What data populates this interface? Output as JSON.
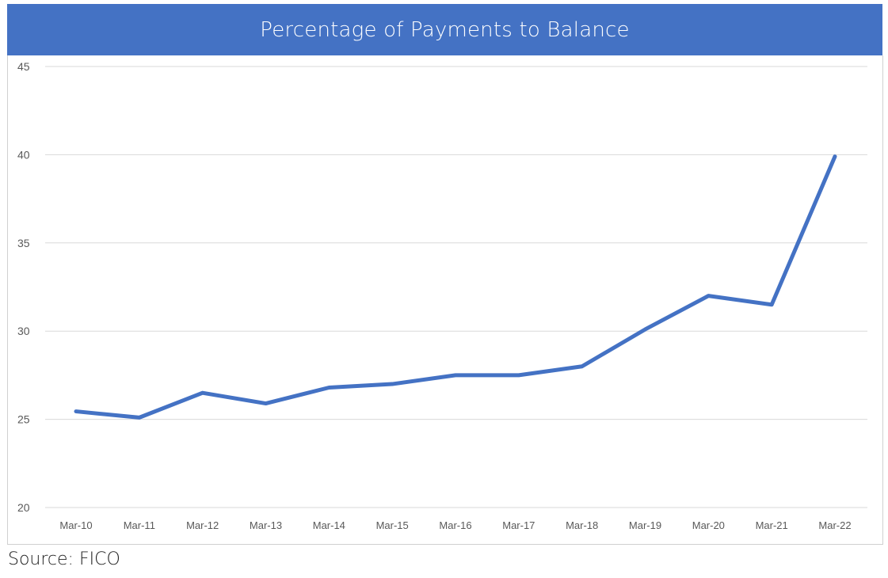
{
  "chart_data": {
    "type": "line",
    "title": "Percentage of Payments to Balance",
    "categories": [
      "Mar-10",
      "Mar-11",
      "Mar-12",
      "Mar-13",
      "Mar-14",
      "Mar-15",
      "Mar-16",
      "Mar-17",
      "Mar-18",
      "Mar-19",
      "Mar-20",
      "Mar-21",
      "Mar-22"
    ],
    "series": [
      {
        "values": [
          25.45,
          25.1,
          26.5,
          25.9,
          26.8,
          27.0,
          27.5,
          27.5,
          28.0,
          30.1,
          32.0,
          31.5,
          39.9
        ],
        "color": "#4472C4"
      }
    ],
    "ylim": [
      20,
      45
    ],
    "yticks": [
      20,
      25,
      30,
      35,
      40,
      45
    ],
    "grid": true,
    "title_bar_color": "#4472C4",
    "xlabel": "",
    "ylabel": ""
  },
  "source": "Source: FICO"
}
